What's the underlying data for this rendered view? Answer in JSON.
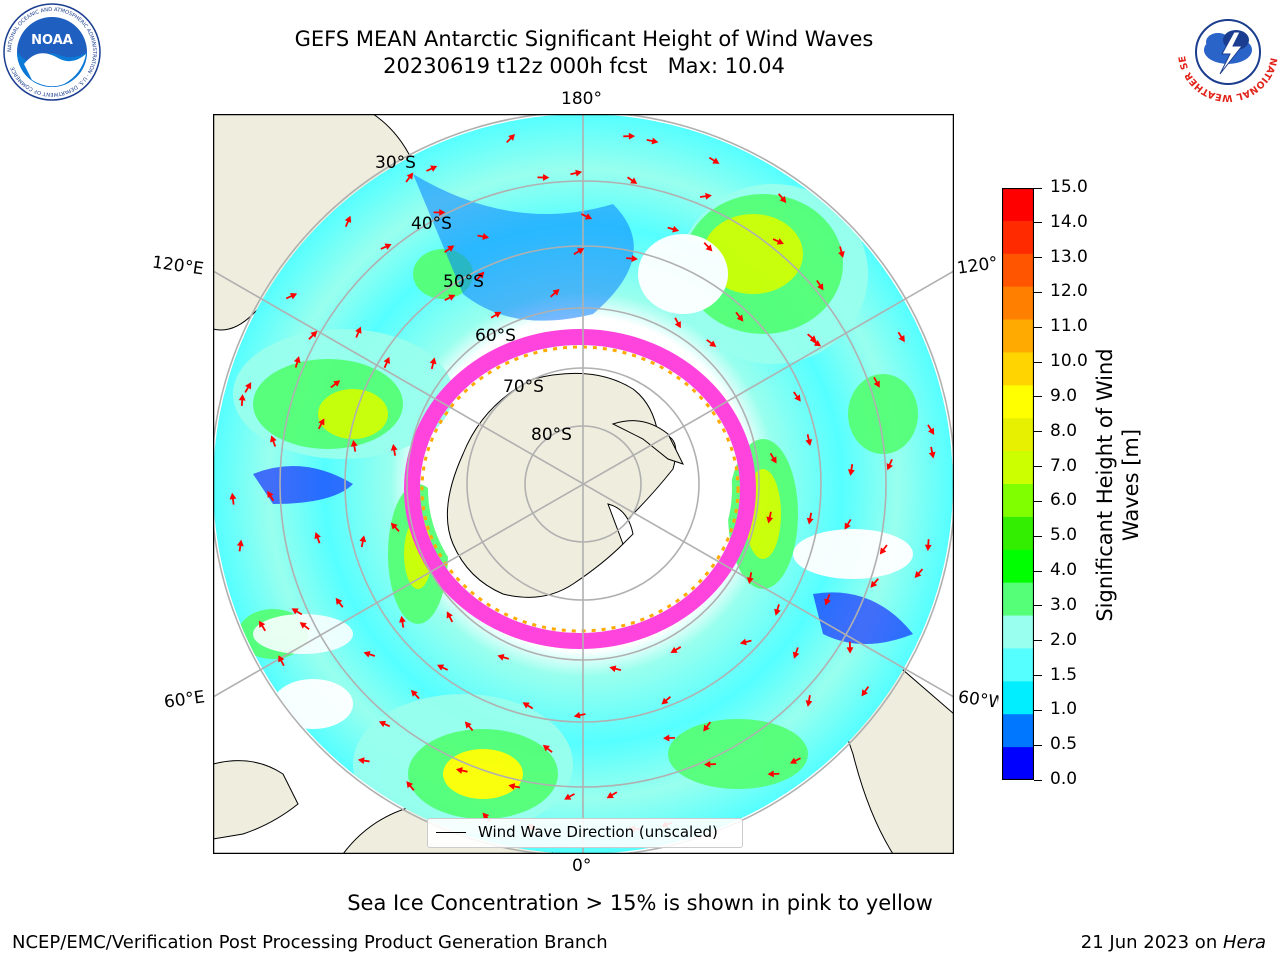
{
  "title": {
    "line1": "GEFS MEAN Antarctic Significant Height of Wind Waves",
    "line2": "20230619 t12z 000h fcst   Max: 10.04"
  },
  "logos": {
    "noaa": {
      "text": "NOAA",
      "ring_text": "NATIONAL OCEANIC AND ATMOSPHERIC ADMINISTRATION · U.S. DEPARTMENT OF COMMERCE"
    },
    "nws": {
      "ring_text": "NATIONAL WEATHER SERVICE"
    }
  },
  "map": {
    "projection": "south-polar-stereographic",
    "longitude_labels": {
      "top": "180°",
      "bottom": "0°",
      "upper_left": "120°E",
      "upper_right": "120°",
      "lower_left": "60°E",
      "lower_right": "60°W"
    },
    "latitude_labels": [
      "30°S",
      "40°S",
      "50°S",
      "60°S",
      "70°S",
      "80°S"
    ],
    "legend": "Wind Wave Direction (unscaled)",
    "colors": {
      "land": "#efedde",
      "ocean_calm": "#ffffff",
      "grid": "#b0b0b0",
      "arrows": "#ff0000",
      "sea_ice": "#ff44dd"
    }
  },
  "colorbar": {
    "label": "Significant Height of Wind Waves [m]",
    "ticks": [
      "15.0",
      "14.0",
      "13.0",
      "12.0",
      "11.0",
      "10.0",
      "9.0",
      "8.0",
      "7.0",
      "6.0",
      "5.0",
      "4.0",
      "3.0",
      "2.0",
      "1.5",
      "1.0",
      "0.5",
      "0.0"
    ],
    "colors_top_to_bottom": [
      "#ff0000",
      "#ff2a00",
      "#ff5500",
      "#ff8000",
      "#ffaa00",
      "#ffd400",
      "#ffff00",
      "#e6f000",
      "#ccff00",
      "#80ff00",
      "#33ee00",
      "#00ff00",
      "#55ff77",
      "#99ffee",
      "#55ffff",
      "#00eeff",
      "#0077ff",
      "#0000ff"
    ]
  },
  "footnote": "Sea Ice Concentration > 15% is shown in pink to yellow",
  "credit": "NCEP/EMC/Verification Post Processing Product Generation Branch",
  "date": {
    "prefix": "21 Jun 2023 on ",
    "host": "Hera"
  }
}
